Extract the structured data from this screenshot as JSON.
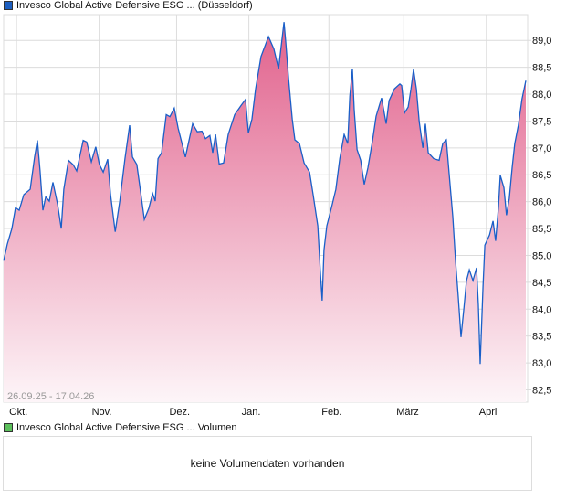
{
  "colors": {
    "line": "#1a5fc8",
    "fill_top": "#e1618c",
    "fill_bottom": "#fdf5f8",
    "grid": "#dcdcdc",
    "legend_price": "#1d5fc0",
    "legend_volume": "#5cc05c"
  },
  "chart_data": {
    "type": "area",
    "title": "Invesco Global Active Defensive ESG ... (Düsseldorf)",
    "date_range": "26.09.25 - 17.04.26",
    "xlabel": "",
    "ylabel": "",
    "xlim": [
      0,
      203
    ],
    "ylim": [
      82.27,
      89.48
    ],
    "grid": true,
    "x_unit": "days since 26.09.25",
    "x_ticks": [
      {
        "label": "Okt.",
        "x": 5
      },
      {
        "label": "Nov.",
        "x": 37
      },
      {
        "label": "Dez.",
        "x": 67
      },
      {
        "label": "Jan.",
        "x": 95
      },
      {
        "label": "Feb.",
        "x": 126
      },
      {
        "label": "März",
        "x": 155
      },
      {
        "label": "April",
        "x": 187
      }
    ],
    "y_ticks": [
      "82,5",
      "83,0",
      "83,5",
      "84,0",
      "84,5",
      "85,0",
      "85,5",
      "86,0",
      "86,5",
      "87,0",
      "87,5",
      "88,0",
      "88,5",
      "89,0"
    ],
    "y_tick_values": [
      82.5,
      83.0,
      83.5,
      84.0,
      84.5,
      85.0,
      85.5,
      86.0,
      86.5,
      87.0,
      87.5,
      88.0,
      88.5,
      89.0
    ],
    "series": [
      {
        "name": "Invesco Global Active Defensive ESG ... (Düsseldorf)",
        "x": [
          0,
          1.4,
          3.2,
          4.6,
          6.0,
          7.8,
          10.3,
          12.0,
          13.1,
          14.1,
          15.2,
          16.3,
          17.7,
          19.1,
          20.9,
          22.3,
          23.3,
          25.1,
          26.9,
          28.3,
          30.8,
          32.2,
          34.0,
          35.7,
          37.1,
          38.6,
          40.3,
          41.4,
          43.2,
          45.0,
          47.0,
          48.8,
          49.9,
          51.6,
          53.4,
          54.5,
          56.2,
          57.7,
          58.7,
          59.8,
          61.2,
          63.0,
          64.4,
          66.1,
          67.6,
          70.4,
          73.2,
          75.0,
          76.8,
          78.2,
          79.9,
          81.0,
          82.1,
          83.5,
          85.2,
          87.0,
          89.5,
          92.0,
          93.7,
          94.8,
          96.2,
          97.6,
          99.7,
          102.6,
          104.7,
          106.5,
          108.6,
          109.3,
          110.4,
          111.8,
          112.8,
          114.6,
          116.4,
          118.5,
          119.9,
          121.7,
          122.7,
          123.4,
          124.1,
          125.2,
          127.0,
          128.7,
          130.2,
          131.9,
          133.3,
          134.1,
          135.1,
          135.8,
          136.9,
          138.3,
          139.7,
          141.1,
          142.9,
          144.3,
          146.4,
          148.2,
          149.3,
          151.4,
          153.5,
          154.2,
          155.3,
          156.7,
          157.8,
          158.8,
          159.9,
          161.0,
          162.4,
          163.4,
          164.5,
          166.6,
          168.7,
          170.1,
          171.5,
          172.6,
          174.0,
          175.1,
          176.1,
          177.2,
          178.3,
          179.3,
          180.4,
          181.8,
          183.2,
          183.9,
          184.6,
          185.7,
          186.4,
          188.2,
          189.6,
          190.6,
          191.7,
          192.4,
          193.8,
          194.8,
          195.9,
          197.0,
          198.0,
          199.4,
          200.8,
          202.3
        ],
        "values": [
          84.9,
          85.21,
          85.5,
          85.89,
          85.84,
          86.13,
          86.23,
          86.83,
          87.14,
          86.57,
          85.84,
          86.09,
          86.01,
          86.36,
          85.95,
          85.5,
          86.23,
          86.77,
          86.69,
          86.57,
          87.14,
          87.11,
          86.74,
          87.02,
          86.69,
          86.55,
          86.79,
          86.13,
          85.44,
          86.01,
          86.8,
          87.42,
          86.83,
          86.69,
          86.06,
          85.67,
          85.87,
          86.15,
          86.01,
          86.8,
          86.91,
          87.62,
          87.58,
          87.74,
          87.37,
          86.83,
          87.45,
          87.3,
          87.31,
          87.17,
          87.23,
          86.91,
          87.25,
          86.7,
          86.72,
          87.25,
          87.62,
          87.79,
          87.9,
          87.28,
          87.54,
          88.1,
          88.7,
          89.07,
          88.84,
          88.47,
          89.34,
          88.95,
          88.27,
          87.54,
          87.15,
          87.08,
          86.72,
          86.55,
          86.13,
          85.55,
          84.7,
          84.16,
          85.1,
          85.55,
          85.89,
          86.23,
          86.8,
          87.25,
          87.08,
          87.96,
          88.47,
          87.71,
          86.97,
          86.77,
          86.32,
          86.63,
          87.14,
          87.59,
          87.93,
          87.45,
          87.88,
          88.1,
          88.19,
          88.16,
          87.65,
          87.76,
          88.1,
          88.46,
          88.1,
          87.49,
          87.0,
          87.45,
          86.91,
          86.8,
          86.77,
          87.08,
          87.15,
          86.52,
          85.72,
          84.87,
          84.25,
          83.48,
          84.02,
          84.53,
          84.73,
          84.53,
          84.77,
          84.08,
          82.98,
          84.42,
          85.19,
          85.38,
          85.64,
          85.27,
          85.89,
          86.49,
          86.26,
          85.75,
          86.06,
          86.63,
          87.08,
          87.42,
          87.91,
          88.25
        ]
      }
    ]
  },
  "volume": {
    "legend": "Invesco Global Active Defensive ESG ... Volumen",
    "message": "keine Volumendaten vorhanden"
  }
}
